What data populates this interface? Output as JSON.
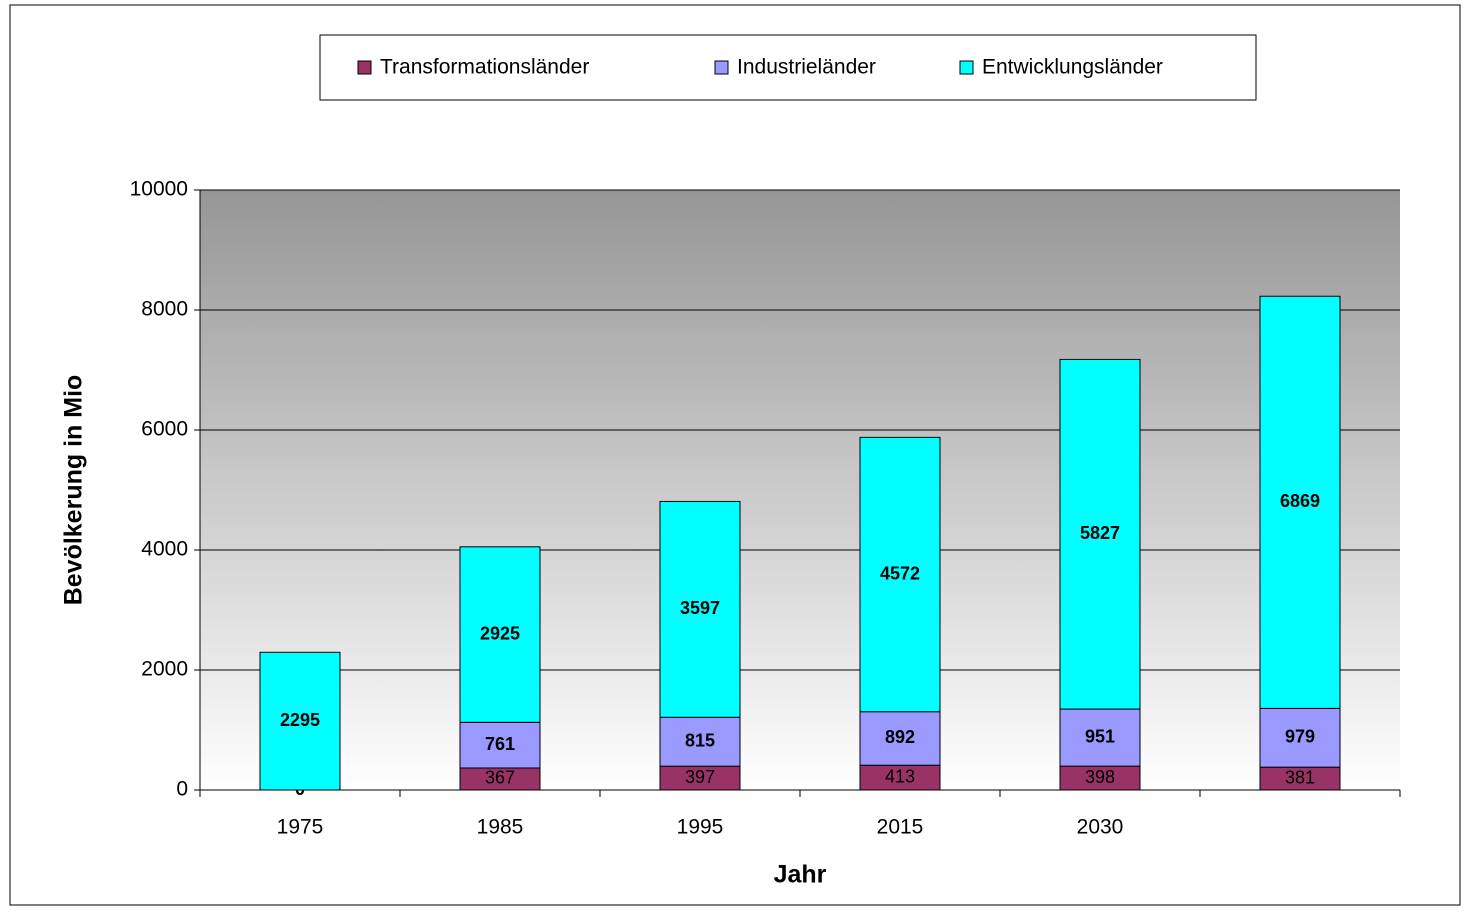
{
  "chart_data": {
    "type": "stacked_bar",
    "y_label": "Bevölkerung in Mio",
    "x_label": "Jahr",
    "categories": [
      "1975",
      "1985",
      "1995",
      "2015",
      "2030",
      null
    ],
    "series": [
      {
        "name": "Transformationsländer",
        "color": "#993366",
        "values": [
          null,
          367,
          397,
          413,
          398,
          381
        ]
      },
      {
        "name": "Industrieländer",
        "color": "#9999ff",
        "values": [
          0,
          761,
          815,
          892,
          951,
          979
        ]
      },
      {
        "name": "Entwicklungsländer",
        "color": "#00ffff",
        "values": [
          2295,
          2925,
          3597,
          4572,
          5827,
          6869
        ]
      }
    ],
    "ylim": [
      0,
      10000
    ],
    "yticks": [
      0,
      2000,
      4000,
      6000,
      8000,
      10000
    ],
    "grid": true,
    "legend": "top"
  }
}
